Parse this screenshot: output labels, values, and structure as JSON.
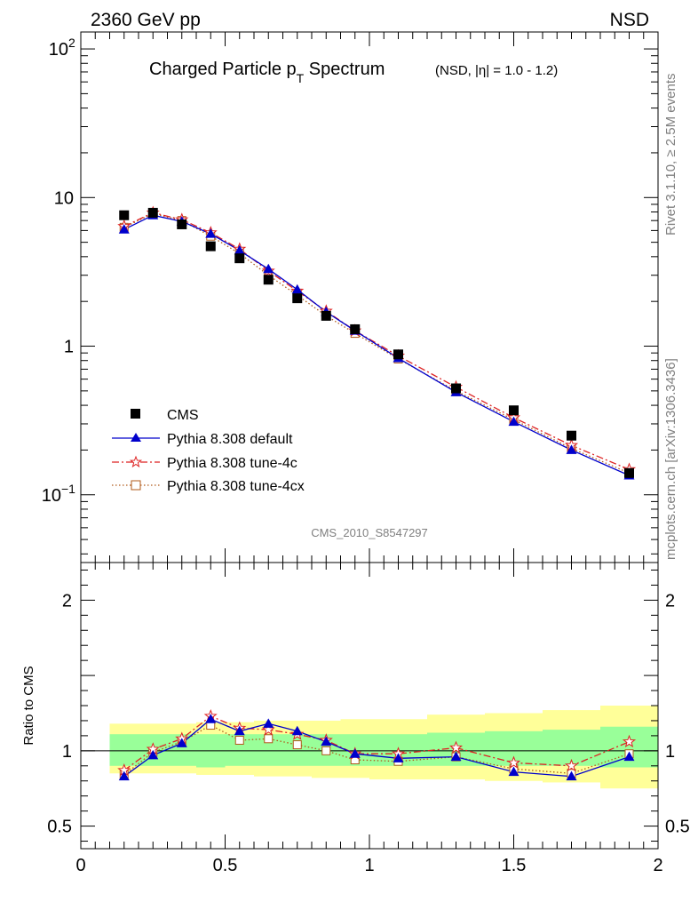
{
  "header": {
    "energy_label": "2360 GeV pp",
    "process_label": "NSD"
  },
  "side_labels": {
    "rivet": "Rivet 3.1.10, ≥ 2.5M events",
    "mcplots": "mcplots.cern.ch [arXiv:1306.3436]"
  },
  "chart_data": [
    {
      "type": "line",
      "title_main": "Charged Particle p",
      "title_sub": "T",
      "title_rest": " Spectrum",
      "title_detail": "(NSD, |η| = 1.0 - 1.2)",
      "analysis_label": "CMS_2010_S8547297",
      "xlim": [
        0,
        2
      ],
      "ylim": [
        0.035,
        130
      ],
      "yscale": "log",
      "y_ticks": [
        {
          "value": 100,
          "label": "10",
          "sup": "2"
        },
        {
          "value": 10,
          "label": "10",
          "sup": ""
        },
        {
          "value": 1,
          "label": "1",
          "sup": ""
        },
        {
          "value": 0.1,
          "label": "10",
          "sup": "−1"
        }
      ],
      "legend_position": "bottom-left",
      "x": [
        0.15,
        0.25,
        0.35,
        0.45,
        0.55,
        0.65,
        0.75,
        0.85,
        0.95,
        1.1,
        1.3,
        1.5,
        1.7,
        1.9
      ],
      "series": [
        {
          "name": "CMS",
          "style": "markers",
          "color": "#000000",
          "values": [
            7.6,
            7.9,
            6.6,
            4.7,
            3.9,
            2.8,
            2.1,
            1.6,
            1.3,
            0.88,
            0.52,
            0.37,
            0.25,
            0.14
          ]
        },
        {
          "name": "Pythia 8.308 default",
          "style": "solid",
          "color": "#0000cc",
          "values": [
            6.1,
            7.6,
            6.9,
            5.7,
            4.4,
            3.3,
            2.4,
            1.7,
            1.27,
            0.83,
            0.49,
            0.31,
            0.2,
            0.135
          ]
        },
        {
          "name": "Pythia 8.308 tune-4c",
          "style": "dashdot",
          "color": "#dd2222",
          "values": [
            6.4,
            7.9,
            7.1,
            5.8,
            4.5,
            3.2,
            2.35,
            1.72,
            1.27,
            0.86,
            0.53,
            0.33,
            0.215,
            0.148
          ]
        },
        {
          "name": "Pythia 8.308 tune-4cx",
          "style": "dotted",
          "color": "#b05a1a",
          "values": [
            6.3,
            7.8,
            7.0,
            5.5,
            4.2,
            3.0,
            2.2,
            1.6,
            1.22,
            0.82,
            0.5,
            0.32,
            0.205,
            0.14
          ]
        }
      ]
    },
    {
      "type": "line",
      "ylabel": "Ratio to CMS",
      "xlim": [
        0,
        2
      ],
      "ylim": [
        0.35,
        2.25
      ],
      "x_ticks": [
        {
          "value": 0,
          "label": "0"
        },
        {
          "value": 0.5,
          "label": "0.5"
        },
        {
          "value": 1,
          "label": "1"
        },
        {
          "value": 1.5,
          "label": "1.5"
        },
        {
          "value": 2,
          "label": "2"
        }
      ],
      "y_ticks": [
        {
          "value": 0.5,
          "label": "0.5"
        },
        {
          "value": 1,
          "label": "1"
        },
        {
          "value": 2,
          "label": "2"
        }
      ],
      "x": [
        0.15,
        0.25,
        0.35,
        0.45,
        0.55,
        0.65,
        0.75,
        0.85,
        0.95,
        1.1,
        1.3,
        1.5,
        1.7,
        1.9
      ],
      "bands": {
        "bins": [
          [
            0.1,
            0.2
          ],
          [
            0.2,
            0.3
          ],
          [
            0.3,
            0.4
          ],
          [
            0.4,
            0.5
          ],
          [
            0.5,
            0.6
          ],
          [
            0.6,
            0.7
          ],
          [
            0.7,
            0.8
          ],
          [
            0.8,
            0.9
          ],
          [
            0.9,
            1.0
          ],
          [
            1.0,
            1.2
          ],
          [
            1.2,
            1.4
          ],
          [
            1.4,
            1.6
          ],
          [
            1.6,
            1.8
          ],
          [
            1.8,
            2.0
          ]
        ],
        "inner": [
          [
            0.9,
            1.11
          ],
          [
            0.9,
            1.11
          ],
          [
            0.9,
            1.11
          ],
          [
            0.89,
            1.11
          ],
          [
            0.9,
            1.11
          ],
          [
            0.9,
            1.11
          ],
          [
            0.9,
            1.11
          ],
          [
            0.9,
            1.11
          ],
          [
            0.9,
            1.11
          ],
          [
            0.9,
            1.11
          ],
          [
            0.9,
            1.12
          ],
          [
            0.9,
            1.13
          ],
          [
            0.9,
            1.14
          ],
          [
            0.89,
            1.16
          ]
        ],
        "outer": [
          [
            0.85,
            1.18
          ],
          [
            0.85,
            1.18
          ],
          [
            0.85,
            1.18
          ],
          [
            0.84,
            1.19
          ],
          [
            0.84,
            1.19
          ],
          [
            0.83,
            1.2
          ],
          [
            0.83,
            1.2
          ],
          [
            0.82,
            1.2
          ],
          [
            0.82,
            1.21
          ],
          [
            0.81,
            1.21
          ],
          [
            0.81,
            1.24
          ],
          [
            0.8,
            1.25
          ],
          [
            0.79,
            1.27
          ],
          [
            0.75,
            1.3
          ]
        ],
        "inner_color": "#99ff99",
        "outer_color": "#ffff99"
      },
      "series": [
        {
          "name": "Pythia 8.308 default",
          "color": "#0000cc",
          "values": [
            0.83,
            0.97,
            1.05,
            1.21,
            1.13,
            1.18,
            1.13,
            1.06,
            0.98,
            0.95,
            0.96,
            0.86,
            0.83,
            0.96
          ]
        },
        {
          "name": "Pythia 8.308 tune-4c",
          "color": "#dd2222",
          "values": [
            0.87,
            1.01,
            1.08,
            1.23,
            1.15,
            1.14,
            1.11,
            1.07,
            0.98,
            0.98,
            1.02,
            0.92,
            0.9,
            1.06
          ]
        },
        {
          "name": "Pythia 8.308 tune-4cx",
          "color": "#b05a1a",
          "values": [
            0.84,
            0.99,
            1.06,
            1.17,
            1.07,
            1.08,
            1.04,
            1.0,
            0.94,
            0.93,
            0.96,
            0.88,
            0.85,
            0.98
          ]
        }
      ]
    }
  ]
}
